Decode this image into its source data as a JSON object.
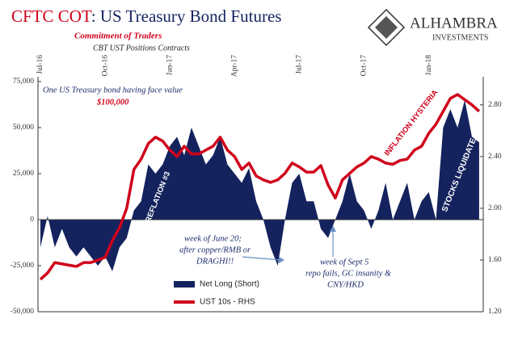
{
  "chart_data": {
    "type": "area_line",
    "title_parts": [
      "CFTC COT",
      ": US Treasury Bond Futures"
    ],
    "subtitle": "Commitment of Traders",
    "subtitle2": "CBT UST Positions Contracts",
    "logo": [
      "ALHAMBRA",
      "INVESTMENTS"
    ],
    "categories": [
      "Jul-16",
      null,
      null,
      null,
      null,
      null,
      null,
      null,
      null,
      "Oct-16",
      null,
      null,
      null,
      null,
      null,
      null,
      null,
      null,
      "Jan-17",
      null,
      null,
      null,
      null,
      null,
      null,
      null,
      null,
      "Apr-17",
      null,
      null,
      null,
      null,
      null,
      null,
      null,
      null,
      "Jul-17",
      null,
      null,
      null,
      null,
      null,
      null,
      null,
      null,
      "Oct-17",
      null,
      null,
      null,
      null,
      null,
      null,
      null,
      null,
      "Jan-18",
      null,
      null,
      null,
      null,
      null,
      null,
      null
    ],
    "series": [
      {
        "name": "Net Long (Short)",
        "color": "#14235e",
        "values": [
          -15000,
          2000,
          -15000,
          -5000,
          -15000,
          -20000,
          -15000,
          -20000,
          -25000,
          -20000,
          -28000,
          -15000,
          -10000,
          5000,
          10000,
          30000,
          25000,
          30000,
          40000,
          45000,
          35000,
          50000,
          40000,
          30000,
          35000,
          45000,
          30000,
          25000,
          20000,
          28000,
          10000,
          0,
          -15000,
          -25000,
          0,
          20000,
          25000,
          10000,
          10000,
          -5000,
          -10000,
          0,
          10000,
          25000,
          10000,
          5000,
          -5000,
          5000,
          20000,
          0,
          10000,
          20000,
          0,
          10000,
          15000,
          0,
          50000,
          60000,
          50000,
          65000,
          45000,
          42000
        ]
      },
      {
        "name": "UST 10s - RHS",
        "color": "#d0021b",
        "axis": "y2",
        "values": [
          1.45,
          1.5,
          1.58,
          1.57,
          1.56,
          1.55,
          1.58,
          1.58,
          1.6,
          1.62,
          1.75,
          1.85,
          2.0,
          2.3,
          2.38,
          2.5,
          2.55,
          2.52,
          2.45,
          2.4,
          2.48,
          2.42,
          2.42,
          2.45,
          2.48,
          2.55,
          2.45,
          2.4,
          2.3,
          2.35,
          2.25,
          2.22,
          2.2,
          2.22,
          2.27,
          2.35,
          2.32,
          2.28,
          2.28,
          2.33,
          2.18,
          2.08,
          2.22,
          2.27,
          2.32,
          2.35,
          2.4,
          2.38,
          2.35,
          2.34,
          2.37,
          2.38,
          2.45,
          2.48,
          2.58,
          2.65,
          2.75,
          2.85,
          2.88,
          2.84,
          2.8,
          2.75
        ]
      }
    ],
    "ylim": [
      -50000,
      75000
    ],
    "yticks": [
      {
        "value": -50000,
        "label": "-50,000"
      },
      {
        "value": -25000,
        "label": "-25,000"
      },
      0,
      {
        "value": 25000,
        "label": "25,000"
      },
      {
        "value": 50000,
        "label": "50,000"
      },
      {
        "value": 75000,
        "label": "75,000"
      }
    ],
    "y2lim": [
      1.2,
      2.98
    ],
    "y2ticks": [
      {
        "value": 1.2,
        "label": "1.20"
      },
      {
        "value": 1.6,
        "label": "1.60"
      },
      {
        "value": 2.0,
        "label": "2.00"
      },
      {
        "value": 2.4,
        "label": "2.40"
      },
      {
        "value": 2.8,
        "label": "2.80"
      }
    ],
    "annotations": [
      "One US Treasury bond having face value",
      "$100,000",
      "REFLATION #3",
      "INFLATION HYSTERIA",
      "STOCKS LIQUIDATE",
      "week of June 20;",
      "after copper/RMB or",
      "DRAGHI!!",
      "week of Sept 5",
      "repo fails, GC insanity &",
      "CNY/HKD"
    ]
  }
}
